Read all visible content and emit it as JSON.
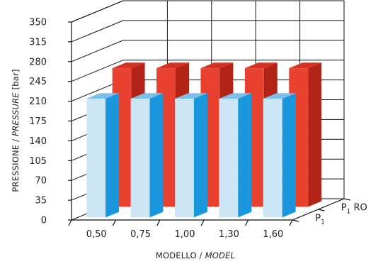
{
  "chart_data": {
    "type": "bar",
    "style": "3d-clustered-depth",
    "categories": [
      "0,50",
      "0,75",
      "1,00",
      "1,30",
      "1,60"
    ],
    "series": [
      {
        "name": "P1 RO",
        "name_main": "P",
        "name_sub": "1",
        "name_rest": " RO",
        "values": [
          245,
          245,
          245,
          245,
          245
        ],
        "color": "#e8412f",
        "color_side": "#b32418",
        "color_top": "#d63222"
      },
      {
        "name": "P1",
        "name_main": "P",
        "name_sub": "1",
        "name_rest": "",
        "values": [
          210,
          210,
          210,
          210,
          210
        ],
        "color": "#cde6f6",
        "color_side": "#1a97dc",
        "color_top": "#7cbfe9"
      }
    ],
    "yticks": [
      "0",
      "35",
      "70",
      "105",
      "140",
      "175",
      "210",
      "245",
      "280",
      "315",
      "350"
    ],
    "ylim": [
      0,
      350
    ],
    "ylabel": {
      "main": "PRESSIONE / ",
      "italic": "PRESSURE",
      "tail": " [bar]"
    },
    "xlabel": {
      "main": "MODELLO / ",
      "italic": "MODEL"
    },
    "grid": true,
    "legend": "series labels on depth axis, bottom-right"
  }
}
